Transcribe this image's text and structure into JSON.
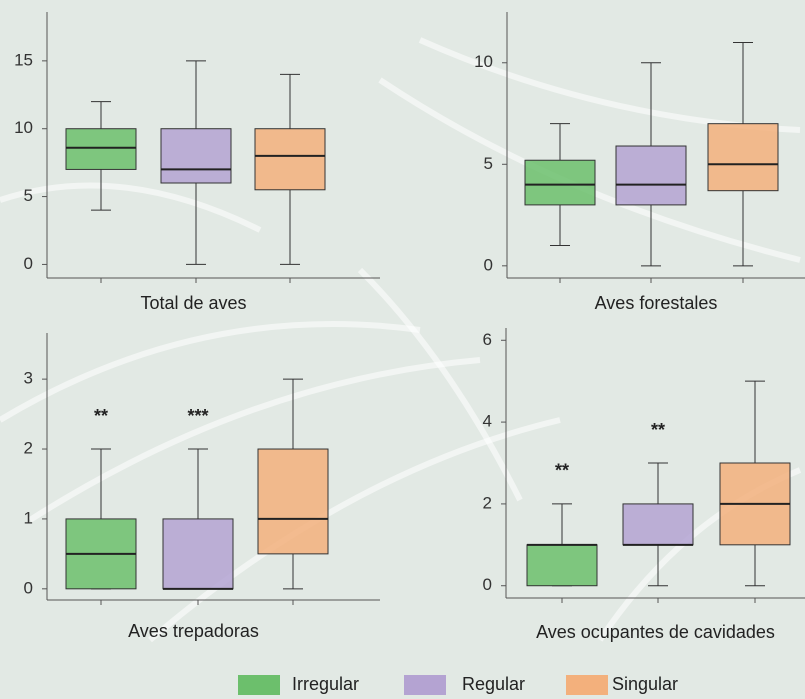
{
  "chart_data": [
    {
      "type": "box",
      "title": "Total de aves",
      "ylim": [
        -1,
        18.6
      ],
      "yticks": [
        0,
        5,
        10,
        15
      ],
      "boxes": [
        {
          "min": 4,
          "q1": 7,
          "median": 8.6,
          "q3": 10,
          "max": 12
        },
        {
          "min": 0,
          "q1": 6,
          "median": 7,
          "q3": 10,
          "max": 15
        },
        {
          "min": 0,
          "q1": 5.5,
          "median": 8,
          "q3": 10,
          "max": 14
        }
      ]
    },
    {
      "type": "box",
      "title": "Aves forestales",
      "ylim": [
        -0.6,
        12.5
      ],
      "yticks": [
        0,
        5,
        10
      ],
      "boxes": [
        {
          "min": 1,
          "q1": 3,
          "median": 4,
          "q3": 5.2,
          "max": 7
        },
        {
          "min": 0,
          "q1": 3,
          "median": 4,
          "q3": 5.9,
          "max": 10
        },
        {
          "min": 0,
          "q1": 3.7,
          "median": 5,
          "q3": 7,
          "max": 11
        }
      ]
    },
    {
      "type": "box",
      "title": "Aves trepadoras",
      "ylim": [
        -0.16,
        3.66
      ],
      "yticks": [
        0,
        1,
        2,
        3
      ],
      "boxes": [
        {
          "min": 0,
          "q1": 0,
          "median": 0.5,
          "q3": 1,
          "max": 2,
          "annotation": "**"
        },
        {
          "min": 0,
          "q1": 0,
          "median": 0,
          "q3": 1,
          "max": 2,
          "annotation": "***"
        },
        {
          "min": 0,
          "q1": 0.5,
          "median": 1,
          "q3": 2,
          "max": 3
        }
      ]
    },
    {
      "type": "box",
      "title": "Aves ocupantes de cavidades",
      "ylim": [
        -0.3,
        6.3
      ],
      "yticks": [
        0,
        2,
        4,
        6
      ],
      "boxes": [
        {
          "min": 0,
          "q1": 0,
          "median": 1,
          "q3": 1,
          "max": 2,
          "annotation": "**"
        },
        {
          "min": 0,
          "q1": 1,
          "median": 1,
          "q3": 2,
          "max": 3,
          "annotation": "**"
        },
        {
          "min": 0,
          "q1": 1,
          "median": 2,
          "q3": 3,
          "max": 5
        }
      ]
    }
  ],
  "legend": [
    {
      "name": "Irregular",
      "color": "#6cbf6c"
    },
    {
      "name": "Regular",
      "color": "#b4a3d2"
    },
    {
      "name": "Singular",
      "color": "#f3b07c"
    }
  ]
}
